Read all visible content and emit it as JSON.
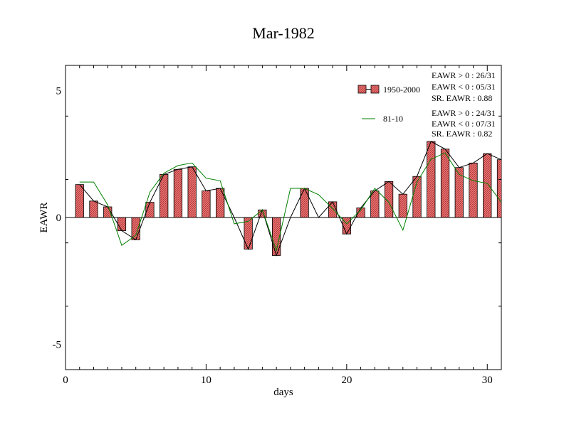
{
  "chart_data": {
    "type": "bar",
    "title": "Mar-1982",
    "xlabel": "days",
    "ylabel": "EAWR",
    "xlim": [
      0,
      31
    ],
    "ylim": [
      -6,
      6
    ],
    "xticks": [
      0,
      10,
      20,
      30
    ],
    "yticks": [
      -5,
      0,
      5
    ],
    "xtick_labels": [
      "0",
      "10",
      "20",
      "30"
    ],
    "ytick_labels": [
      "-5",
      "0",
      "5"
    ],
    "grid": false,
    "legend_position": "top-right",
    "x": [
      1,
      2,
      3,
      4,
      5,
      6,
      7,
      8,
      9,
      10,
      11,
      12,
      13,
      14,
      15,
      16,
      17,
      18,
      19,
      20,
      21,
      22,
      23,
      24,
      25,
      26,
      27,
      28,
      29,
      30,
      31
    ],
    "series": [
      {
        "name": "1950-2000",
        "kind": "bar+line",
        "color": "#f08080",
        "line_color": "#000000",
        "values": [
          1.3,
          0.65,
          0.42,
          -0.52,
          -0.88,
          0.6,
          1.7,
          1.9,
          2.0,
          1.05,
          1.15,
          0,
          -1.25,
          0.3,
          -1.5,
          0,
          1.15,
          0,
          0.62,
          -0.65,
          0.38,
          1.05,
          1.42,
          0.92,
          1.62,
          3.0,
          2.7,
          1.97,
          2.15,
          2.52,
          2.28
        ],
        "stats": [
          "EAWR > 0 : 26/31",
          "EAWR < 0 : 05/31",
          "SR. EAWR :  0.88"
        ]
      },
      {
        "name": "81-10",
        "kind": "line",
        "color": "#008000",
        "values": [
          1.4,
          1.4,
          0.5,
          -1.1,
          -0.7,
          1.0,
          1.75,
          2.05,
          2.15,
          1.55,
          1.45,
          -0.25,
          -0.15,
          0.3,
          -1.3,
          1.15,
          1.15,
          0.9,
          0.35,
          -0.25,
          0.3,
          1.15,
          0.6,
          -0.5,
          1.4,
          2.3,
          2.55,
          1.7,
          1.45,
          1.35,
          0.6
        ],
        "stats": [
          "EAWR > 0 : 24/31",
          "EAWR < 0 : 07/31",
          "SR. EAWR :  0.82"
        ]
      }
    ]
  }
}
